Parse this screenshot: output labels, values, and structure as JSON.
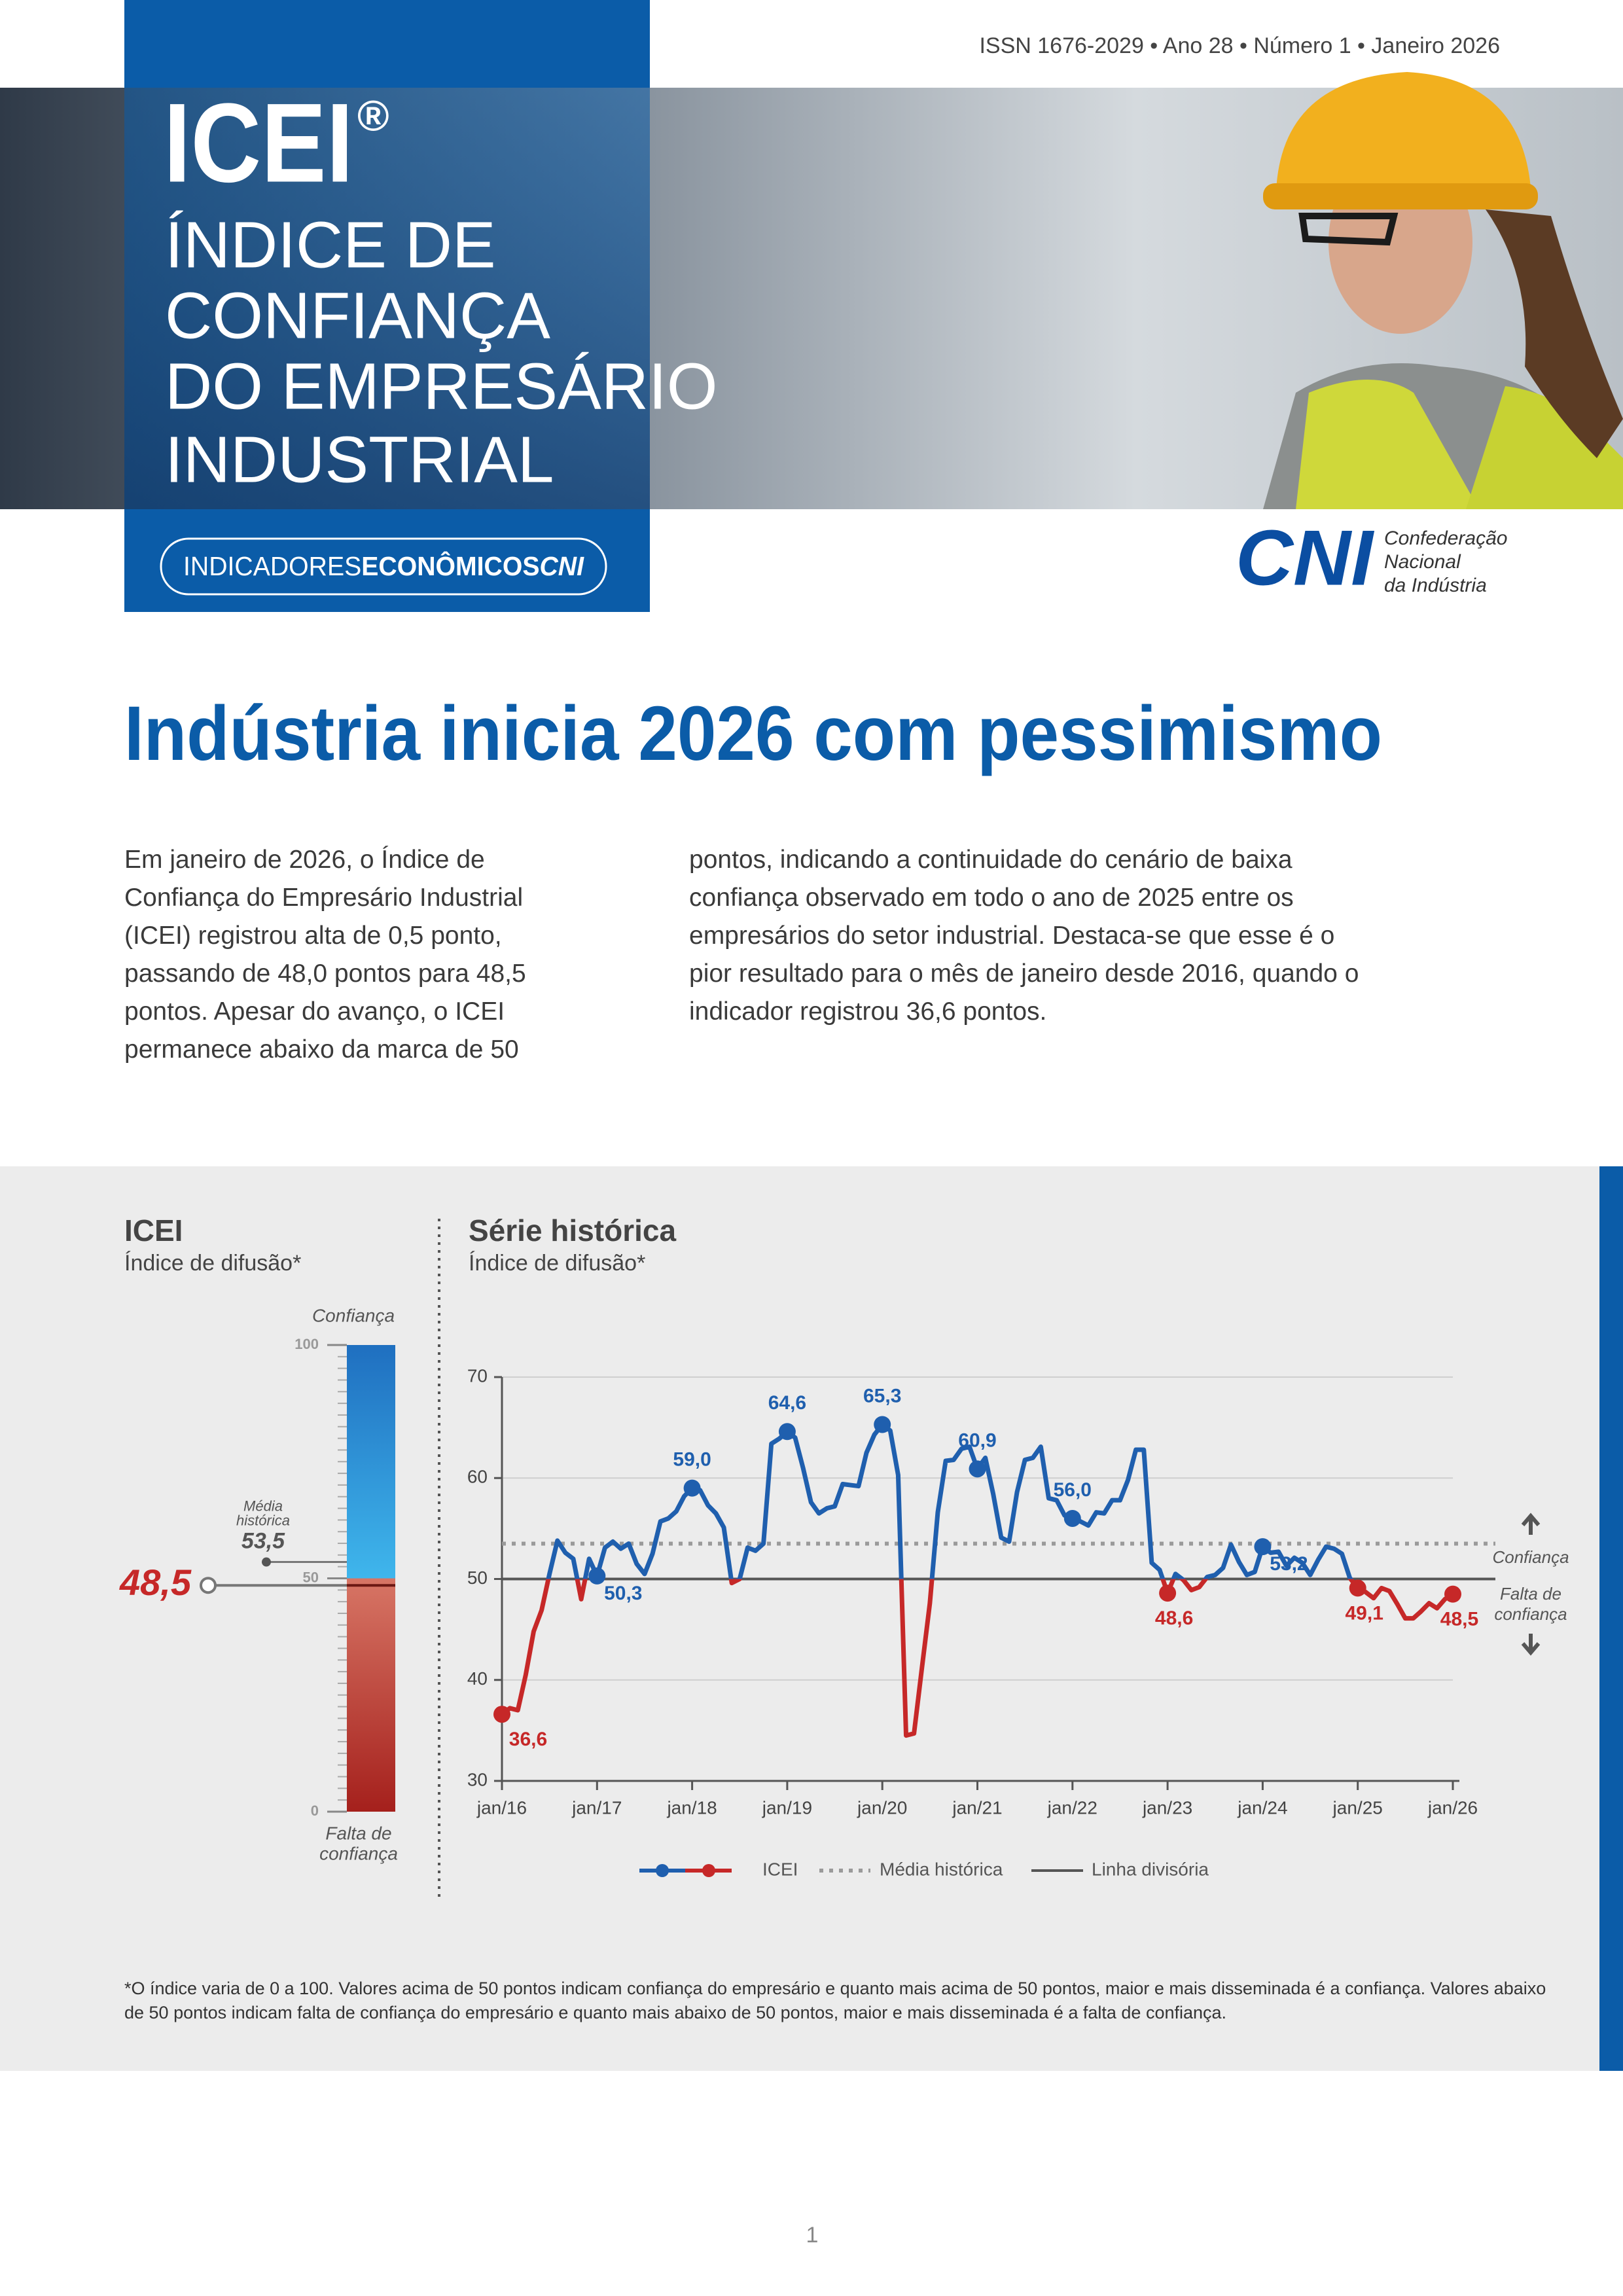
{
  "header": {
    "issn": "ISSN 1676-2029 • Ano 28 • Número 1 • Janeiro 2026",
    "acronym": "ICEI",
    "registered": "®",
    "subtitle_lines": [
      "ÍNDICE DE",
      "CONFIANÇA",
      "DO EMPRESÁRIO",
      "INDUSTRIAL"
    ],
    "series_label": [
      "INDICADORES",
      "ECONÔMICOS",
      "CNI"
    ],
    "logo": "CNI",
    "organization_lines": [
      "Confederação",
      "Nacional",
      "da Indústria"
    ]
  },
  "title": "Indústria inicia 2026 com pessimismo",
  "body": [
    "Em janeiro de 2026, o Índice de Confiança do Empresário Industrial (ICEI) registrou alta de 0,5 ponto, passando de 48,0 pontos para 48,5 pontos. Apesar do avanço, o ICEI permanece abaixo da marca de 50",
    "pontos, indicando a continuidade do cenário de baixa confiança observado em todo o ano de 2025 entre os empresários do setor industrial. Destaca-se que esse é o pior resultado para o mês de janeiro desde 2016, quando o indicador registrou 36,6 pontos."
  ],
  "chart_data": [
    {
      "type": "gauge",
      "title": "ICEI",
      "subtitle": "Índice de difusão*",
      "value": 48.5,
      "value_label": "48,5",
      "threshold": 50,
      "ylim": [
        0,
        100
      ],
      "yticks": [
        0,
        50,
        100
      ],
      "color_above": "#1f6fc0",
      "color_below": "#b3302b",
      "reference": {
        "label_lines": [
          "Média",
          "histórica"
        ],
        "value": 53.5,
        "value_label": "53,5"
      },
      "top_label": "Confiança",
      "bottom_label_lines": [
        "Falta de",
        "confiança"
      ]
    },
    {
      "type": "line",
      "title": "Série histórica",
      "subtitle": "Índice de difusão*",
      "categories": [
        "jan/16",
        null,
        null,
        null,
        null,
        null,
        null,
        null,
        null,
        null,
        null,
        null,
        "jan/17",
        null,
        null,
        null,
        null,
        null,
        null,
        null,
        null,
        null,
        null,
        null,
        "jan/18",
        null,
        null,
        null,
        null,
        null,
        null,
        null,
        null,
        null,
        null,
        null,
        "jan/19",
        null,
        null,
        null,
        null,
        null,
        null,
        null,
        null,
        null,
        null,
        null,
        "jan/20",
        null,
        null,
        null,
        null,
        null,
        null,
        null,
        null,
        null,
        null,
        null,
        "jan/21",
        null,
        null,
        null,
        null,
        null,
        null,
        null,
        null,
        null,
        null,
        null,
        "jan/22",
        null,
        null,
        null,
        null,
        null,
        null,
        null,
        null,
        null,
        null,
        null,
        "jan/23",
        null,
        null,
        null,
        null,
        null,
        null,
        null,
        null,
        null,
        null,
        null,
        "jan/24",
        null,
        null,
        null,
        null,
        null,
        null,
        null,
        null,
        null,
        null,
        null,
        "jan/25",
        null,
        null,
        null,
        null,
        null,
        null,
        null,
        null,
        null,
        null,
        null,
        "jan/26"
      ],
      "series": [
        {
          "name": "ICEI",
          "color": "#1f5fae",
          "color_below": "#c62828",
          "values": [
            36.6,
            37.2,
            37.0,
            40.5,
            44.8,
            46.9,
            50.5,
            53.8,
            52.6,
            52.0,
            48.0,
            52.0,
            50.3,
            53.1,
            53.7,
            53.0,
            53.5,
            51.5,
            50.5,
            52.5,
            55.7,
            56.0,
            56.7,
            58.2,
            59.0,
            58.8,
            57.3,
            56.5,
            55.1,
            49.6,
            50.0,
            53.1,
            52.8,
            53.5,
            63.4,
            63.9,
            64.6,
            64.0,
            61.0,
            57.6,
            56.5,
            57.0,
            57.2,
            59.4,
            59.3,
            59.2,
            62.5,
            64.3,
            65.3,
            64.7,
            60.3,
            34.5,
            34.7,
            41.2,
            47.6,
            56.6,
            61.7,
            61.8,
            62.9,
            63.1,
            60.9,
            62.0,
            58.4,
            54.1,
            53.7,
            58.6,
            61.8,
            62.0,
            63.1,
            58.0,
            57.8,
            56.3,
            56.0,
            55.7,
            55.3,
            56.6,
            56.5,
            57.8,
            57.8,
            59.8,
            62.8,
            62.8,
            51.6,
            50.9,
            48.6,
            50.5,
            49.9,
            48.9,
            49.2,
            50.2,
            50.4,
            51.1,
            53.4,
            51.7,
            50.4,
            50.7,
            53.2,
            52.6,
            52.7,
            51.3,
            52.1,
            51.6,
            50.4,
            51.9,
            53.2,
            53.0,
            52.5,
            50.1,
            49.1,
            48.7,
            48.1,
            49.1,
            48.8,
            47.5,
            46.1,
            46.1,
            46.8,
            47.6,
            47.1,
            48.0,
            48.5
          ],
          "value_labels": [
            "36,6",
            null,
            null,
            null,
            null,
            null,
            null,
            null,
            null,
            null,
            null,
            null,
            "50,3",
            null,
            null,
            null,
            null,
            null,
            null,
            null,
            null,
            null,
            null,
            null,
            "59,0",
            null,
            null,
            null,
            null,
            null,
            null,
            null,
            null,
            null,
            null,
            null,
            "64,6",
            null,
            null,
            null,
            null,
            null,
            null,
            null,
            null,
            null,
            null,
            null,
            "65,3",
            null,
            null,
            null,
            null,
            null,
            null,
            null,
            null,
            null,
            null,
            null,
            "60,9",
            null,
            null,
            null,
            null,
            null,
            null,
            null,
            null,
            null,
            null,
            null,
            "56,0",
            null,
            null,
            null,
            null,
            null,
            null,
            null,
            null,
            null,
            null,
            null,
            "48,6",
            null,
            null,
            null,
            null,
            null,
            null,
            null,
            null,
            null,
            null,
            null,
            "53,2",
            null,
            null,
            null,
            null,
            null,
            null,
            null,
            null,
            null,
            null,
            null,
            "49,1",
            null,
            null,
            null,
            null,
            null,
            null,
            null,
            null,
            null,
            null,
            null,
            "48,5"
          ]
        }
      ],
      "reference_lines": [
        {
          "name": "Média histórica",
          "value": 53.5,
          "style": "dotted",
          "color": "#9a9a9a"
        },
        {
          "name": "Linha divisória",
          "value": 50,
          "style": "solid",
          "color": "#555555"
        }
      ],
      "ylim": [
        30,
        70
      ],
      "yticks": [
        30,
        40,
        50,
        60,
        70
      ],
      "grid": true,
      "annotations": {
        "above": "Confiança",
        "below_lines": [
          "Falta de",
          "confiança"
        ]
      }
    }
  ],
  "footnote": "*O índice varia de 0 a 100. Valores acima de 50 pontos indicam confiança do empresário e quanto mais acima de 50 pontos, maior e mais disseminada é a confiança. Valores abaixo de 50 pontos indicam falta de confiança do empresário e quanto mais abaixo de 50 pontos, maior e mais disseminada é a falta de confiança.",
  "page_number": "1"
}
